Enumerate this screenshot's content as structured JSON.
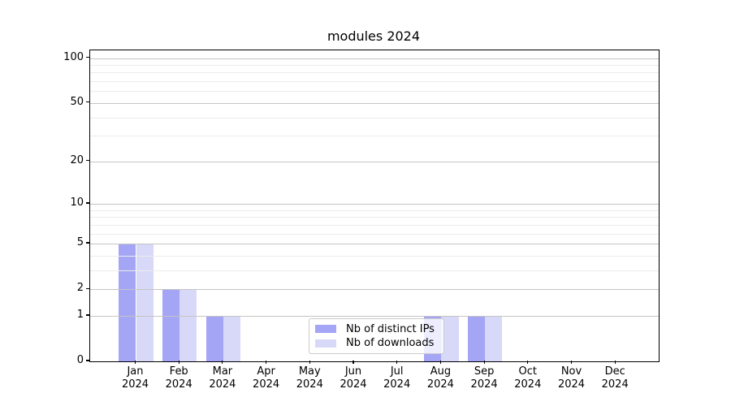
{
  "title": "modules 2024",
  "colors": {
    "distinct_ips": "#a5a5f6",
    "downloads": "#d8d8f8",
    "grid_major": "#c4c4c4",
    "grid_minor": "#ececec",
    "axis": "#000000",
    "legend_border": "#cccccc"
  },
  "legend": {
    "items": [
      {
        "label": "Nb of distinct IPs",
        "color": "#a5a5f6"
      },
      {
        "label": "Nb of downloads",
        "color": "#d8d8f8"
      }
    ]
  },
  "chart_data": {
    "type": "bar",
    "title": "modules 2024",
    "x_months": [
      "Jan",
      "Feb",
      "Mar",
      "Apr",
      "May",
      "Jun",
      "Jul",
      "Aug",
      "Sep",
      "Oct",
      "Nov",
      "Dec"
    ],
    "x_year": "2024",
    "categories": [
      "Jan 2024",
      "Feb 2024",
      "Mar 2024",
      "Apr 2024",
      "May 2024",
      "Jun 2024",
      "Jul 2024",
      "Aug 2024",
      "Sep 2024",
      "Oct 2024",
      "Nov 2024",
      "Dec 2024"
    ],
    "series": [
      {
        "name": "Nb of distinct IPs",
        "color": "#a5a5f6",
        "values": [
          5,
          2,
          1,
          0,
          0,
          0,
          0,
          1,
          1,
          0,
          0,
          0
        ]
      },
      {
        "name": "Nb of downloads",
        "color": "#d8d8f8",
        "values": [
          5,
          2,
          1,
          0,
          0,
          0,
          0,
          1,
          1,
          0,
          0,
          0
        ]
      }
    ],
    "y_scale": "log10(1+x)",
    "y_ticks": [
      0,
      1,
      2,
      5,
      10,
      20,
      50,
      100
    ],
    "y_minor_ticks": [
      3,
      4,
      6,
      7,
      8,
      9,
      30,
      40,
      60,
      70,
      80,
      90
    ],
    "ylim": [
      0,
      113
    ],
    "grid": "on",
    "legend_position": "lower center"
  }
}
